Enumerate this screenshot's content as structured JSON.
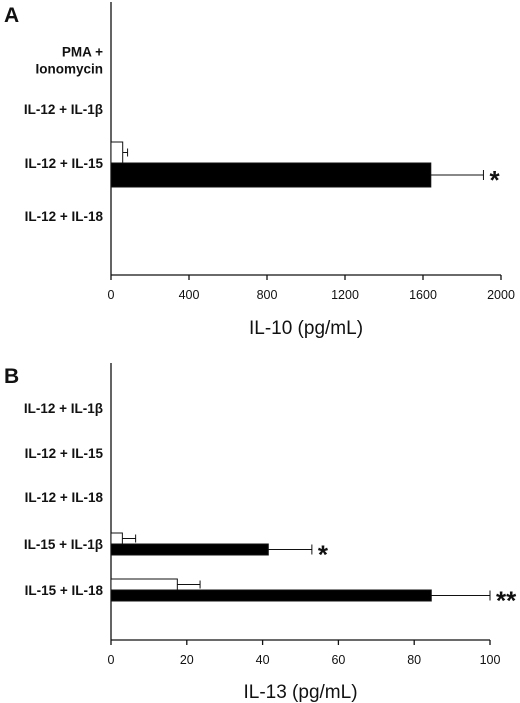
{
  "chart_data": [
    {
      "type": "bar",
      "orientation": "horizontal",
      "panel": "A",
      "categories": [
        [
          "PMA +",
          "Ionomycin"
        ],
        [
          "IL-12 + IL-1β"
        ],
        [
          "IL-12 + IL-15"
        ],
        [
          "IL-12 + IL-18"
        ]
      ],
      "series": [
        {
          "values": [
            0,
            0,
            60,
            0
          ],
          "errors": [
            0,
            0,
            25,
            0
          ],
          "color": "#ffffff"
        },
        {
          "values": [
            0,
            0,
            1640,
            0
          ],
          "errors": [
            0,
            0,
            270,
            0
          ],
          "color": "#000000"
        }
      ],
      "annotations": [
        {
          "category_index": 2,
          "text": "*"
        }
      ],
      "xlabel": "IL-10 (pg/mL)",
      "xlim": [
        0,
        2000
      ],
      "xticks": [
        "0",
        "400",
        "800",
        "1200",
        "1600",
        "2000"
      ],
      "xtick_values": [
        0,
        400,
        800,
        1200,
        1600,
        2000
      ],
      "grid": false,
      "legend": "none"
    },
    {
      "type": "bar",
      "orientation": "horizontal",
      "panel": "B",
      "categories": [
        [
          "IL-12 + IL-1β"
        ],
        [
          "IL-12 + IL-15"
        ],
        [
          "IL-12 + IL-18"
        ],
        [
          "IL-15 + IL-1β"
        ],
        [
          "IL-15 + IL-18"
        ]
      ],
      "series": [
        {
          "values": [
            0,
            0,
            0,
            3,
            17.5
          ],
          "errors": [
            0,
            0,
            0,
            3.5,
            6
          ],
          "color": "#ffffff"
        },
        {
          "values": [
            0,
            0,
            0,
            41.5,
            84.5
          ],
          "errors": [
            0,
            0,
            0,
            11.5,
            15.5
          ],
          "color": "#000000"
        }
      ],
      "annotations": [
        {
          "category_index": 3,
          "text": "*"
        },
        {
          "category_index": 4,
          "text": "**"
        }
      ],
      "xlabel": "IL-13 (pg/mL)",
      "xlim": [
        0,
        100
      ],
      "xticks": [
        "0",
        "20",
        "40",
        "60",
        "80",
        "100"
      ],
      "xtick_values": [
        0,
        20,
        40,
        60,
        80,
        100
      ],
      "grid": false,
      "legend": "none"
    }
  ]
}
